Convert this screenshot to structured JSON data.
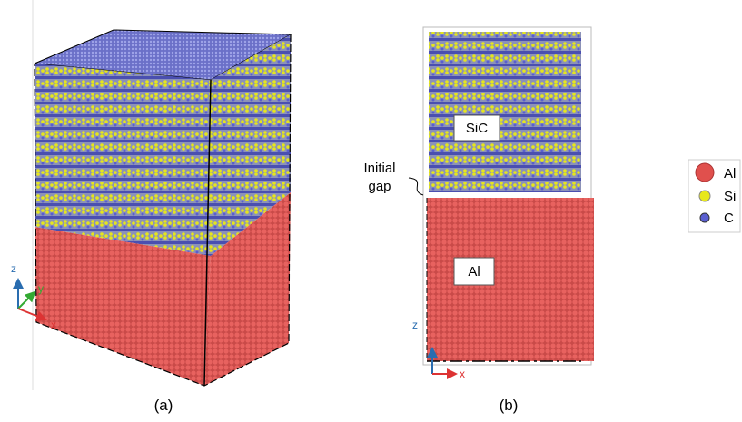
{
  "panels": [
    {
      "caption": "(a)",
      "axes": [
        "z",
        "y",
        "x"
      ]
    },
    {
      "caption": "(b)",
      "regions": [
        "SiC",
        "Al"
      ],
      "annotation": [
        "Initial",
        "gap"
      ],
      "axes": [
        "z",
        "x"
      ]
    }
  ],
  "legend": [
    "Al",
    "Si",
    "C"
  ]
}
